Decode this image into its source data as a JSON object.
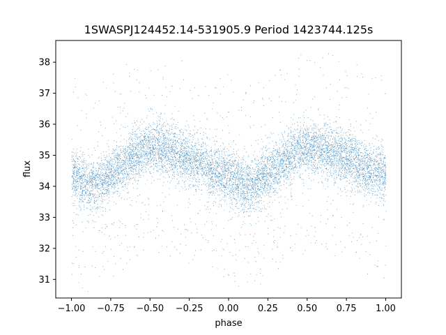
{
  "chart_data": {
    "type": "scatter",
    "title": "1SWASPJ124452.14-531905.9 Period 1423744.125s",
    "xlabel": "phase",
    "ylabel": "flux",
    "xlim": [
      -1.1,
      1.1
    ],
    "ylim": [
      30.4,
      38.7
    ],
    "xticks": [
      -1.0,
      -0.75,
      -0.5,
      -0.25,
      0.0,
      0.25,
      0.5,
      0.75,
      1.0
    ],
    "xtick_labels": [
      "−1.00",
      "−0.75",
      "−0.50",
      "−0.25",
      "0.00",
      "0.25",
      "0.50",
      "0.75",
      "1.00"
    ],
    "yticks": [
      31,
      32,
      33,
      34,
      35,
      36,
      37,
      38
    ],
    "ytick_labels": [
      "31",
      "32",
      "33",
      "34",
      "35",
      "36",
      "37",
      "38"
    ],
    "grid": false,
    "marker_color": "#1f77b4",
    "phase_range": [
      -1.0,
      1.0
    ],
    "series": [
      {
        "description_shape": "phase-folded light curve, mirrored about phase 0",
        "mean_flux_profile": [
          {
            "x": -1.0,
            "y": 34.4
          },
          {
            "x": -0.9,
            "y": 34.0
          },
          {
            "x": -0.8,
            "y": 34.2
          },
          {
            "x": -0.7,
            "y": 34.6
          },
          {
            "x": -0.6,
            "y": 35.0
          },
          {
            "x": -0.5,
            "y": 35.3
          },
          {
            "x": -0.4,
            "y": 35.2
          },
          {
            "x": -0.3,
            "y": 35.0
          },
          {
            "x": -0.2,
            "y": 34.8
          },
          {
            "x": -0.1,
            "y": 34.5
          },
          {
            "x": 0.0,
            "y": 34.4
          },
          {
            "x": 0.1,
            "y": 34.0
          },
          {
            "x": 0.2,
            "y": 34.2
          },
          {
            "x": 0.3,
            "y": 34.6
          },
          {
            "x": 0.4,
            "y": 35.0
          },
          {
            "x": 0.5,
            "y": 35.3
          },
          {
            "x": 0.6,
            "y": 35.2
          },
          {
            "x": 0.7,
            "y": 35.0
          },
          {
            "x": 0.8,
            "y": 34.8
          },
          {
            "x": 0.9,
            "y": 34.5
          },
          {
            "x": 1.0,
            "y": 34.4
          }
        ]
      }
    ]
  }
}
